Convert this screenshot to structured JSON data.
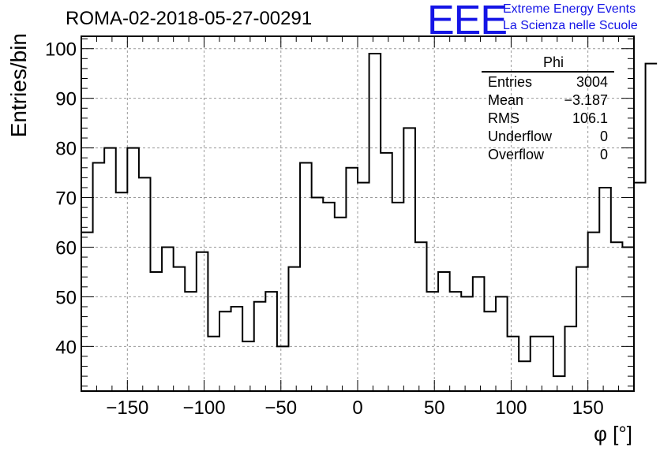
{
  "title": "ROMA-02-2018-05-27-00291",
  "logo": {
    "mark": "EEE",
    "line1": "Extreme Energy Events",
    "line2": "La Scienza nelle Scuole",
    "color": "#1414e6"
  },
  "stats_box": {
    "name": "Phi",
    "rows": [
      {
        "label": "Entries",
        "value": "3004"
      },
      {
        "label": "Mean",
        "value": "−3.187"
      },
      {
        "label": "RMS",
        "value": "106.1"
      },
      {
        "label": "Underflow",
        "value": "0"
      },
      {
        "label": "Overflow",
        "value": "0"
      }
    ]
  },
  "chart_data": {
    "type": "histogram",
    "title": "ROMA-02-2018-05-27-00291",
    "xlabel": "φ [°]",
    "ylabel": "Entries/bin",
    "xlim": [
      -180,
      180
    ],
    "ylim": [
      31,
      102.5
    ],
    "bin_width": 7.5,
    "bin_edges_start": -180,
    "values": [
      63,
      77,
      80,
      71,
      80,
      74,
      55,
      60,
      56,
      51,
      59,
      42,
      47,
      48,
      41,
      49,
      51,
      40,
      56,
      77,
      70,
      69,
      66,
      76,
      73,
      99,
      79,
      69,
      84,
      61,
      51,
      55,
      51,
      50,
      54,
      47,
      50,
      42,
      37,
      42,
      42,
      34,
      44,
      56,
      63,
      72,
      61,
      60,
      73,
      97
    ],
    "x_ticks": [
      -150,
      -100,
      -50,
      0,
      50,
      100,
      150
    ],
    "x_tick_labels": [
      "−150",
      "−100",
      "−50",
      "0",
      "50",
      "100",
      "150"
    ],
    "y_ticks": [
      40,
      50,
      60,
      70,
      80,
      90,
      100
    ],
    "y_tick_labels": [
      "40",
      "50",
      "60",
      "70",
      "80",
      "90",
      "100"
    ],
    "grid": true,
    "legend": "top-right"
  }
}
